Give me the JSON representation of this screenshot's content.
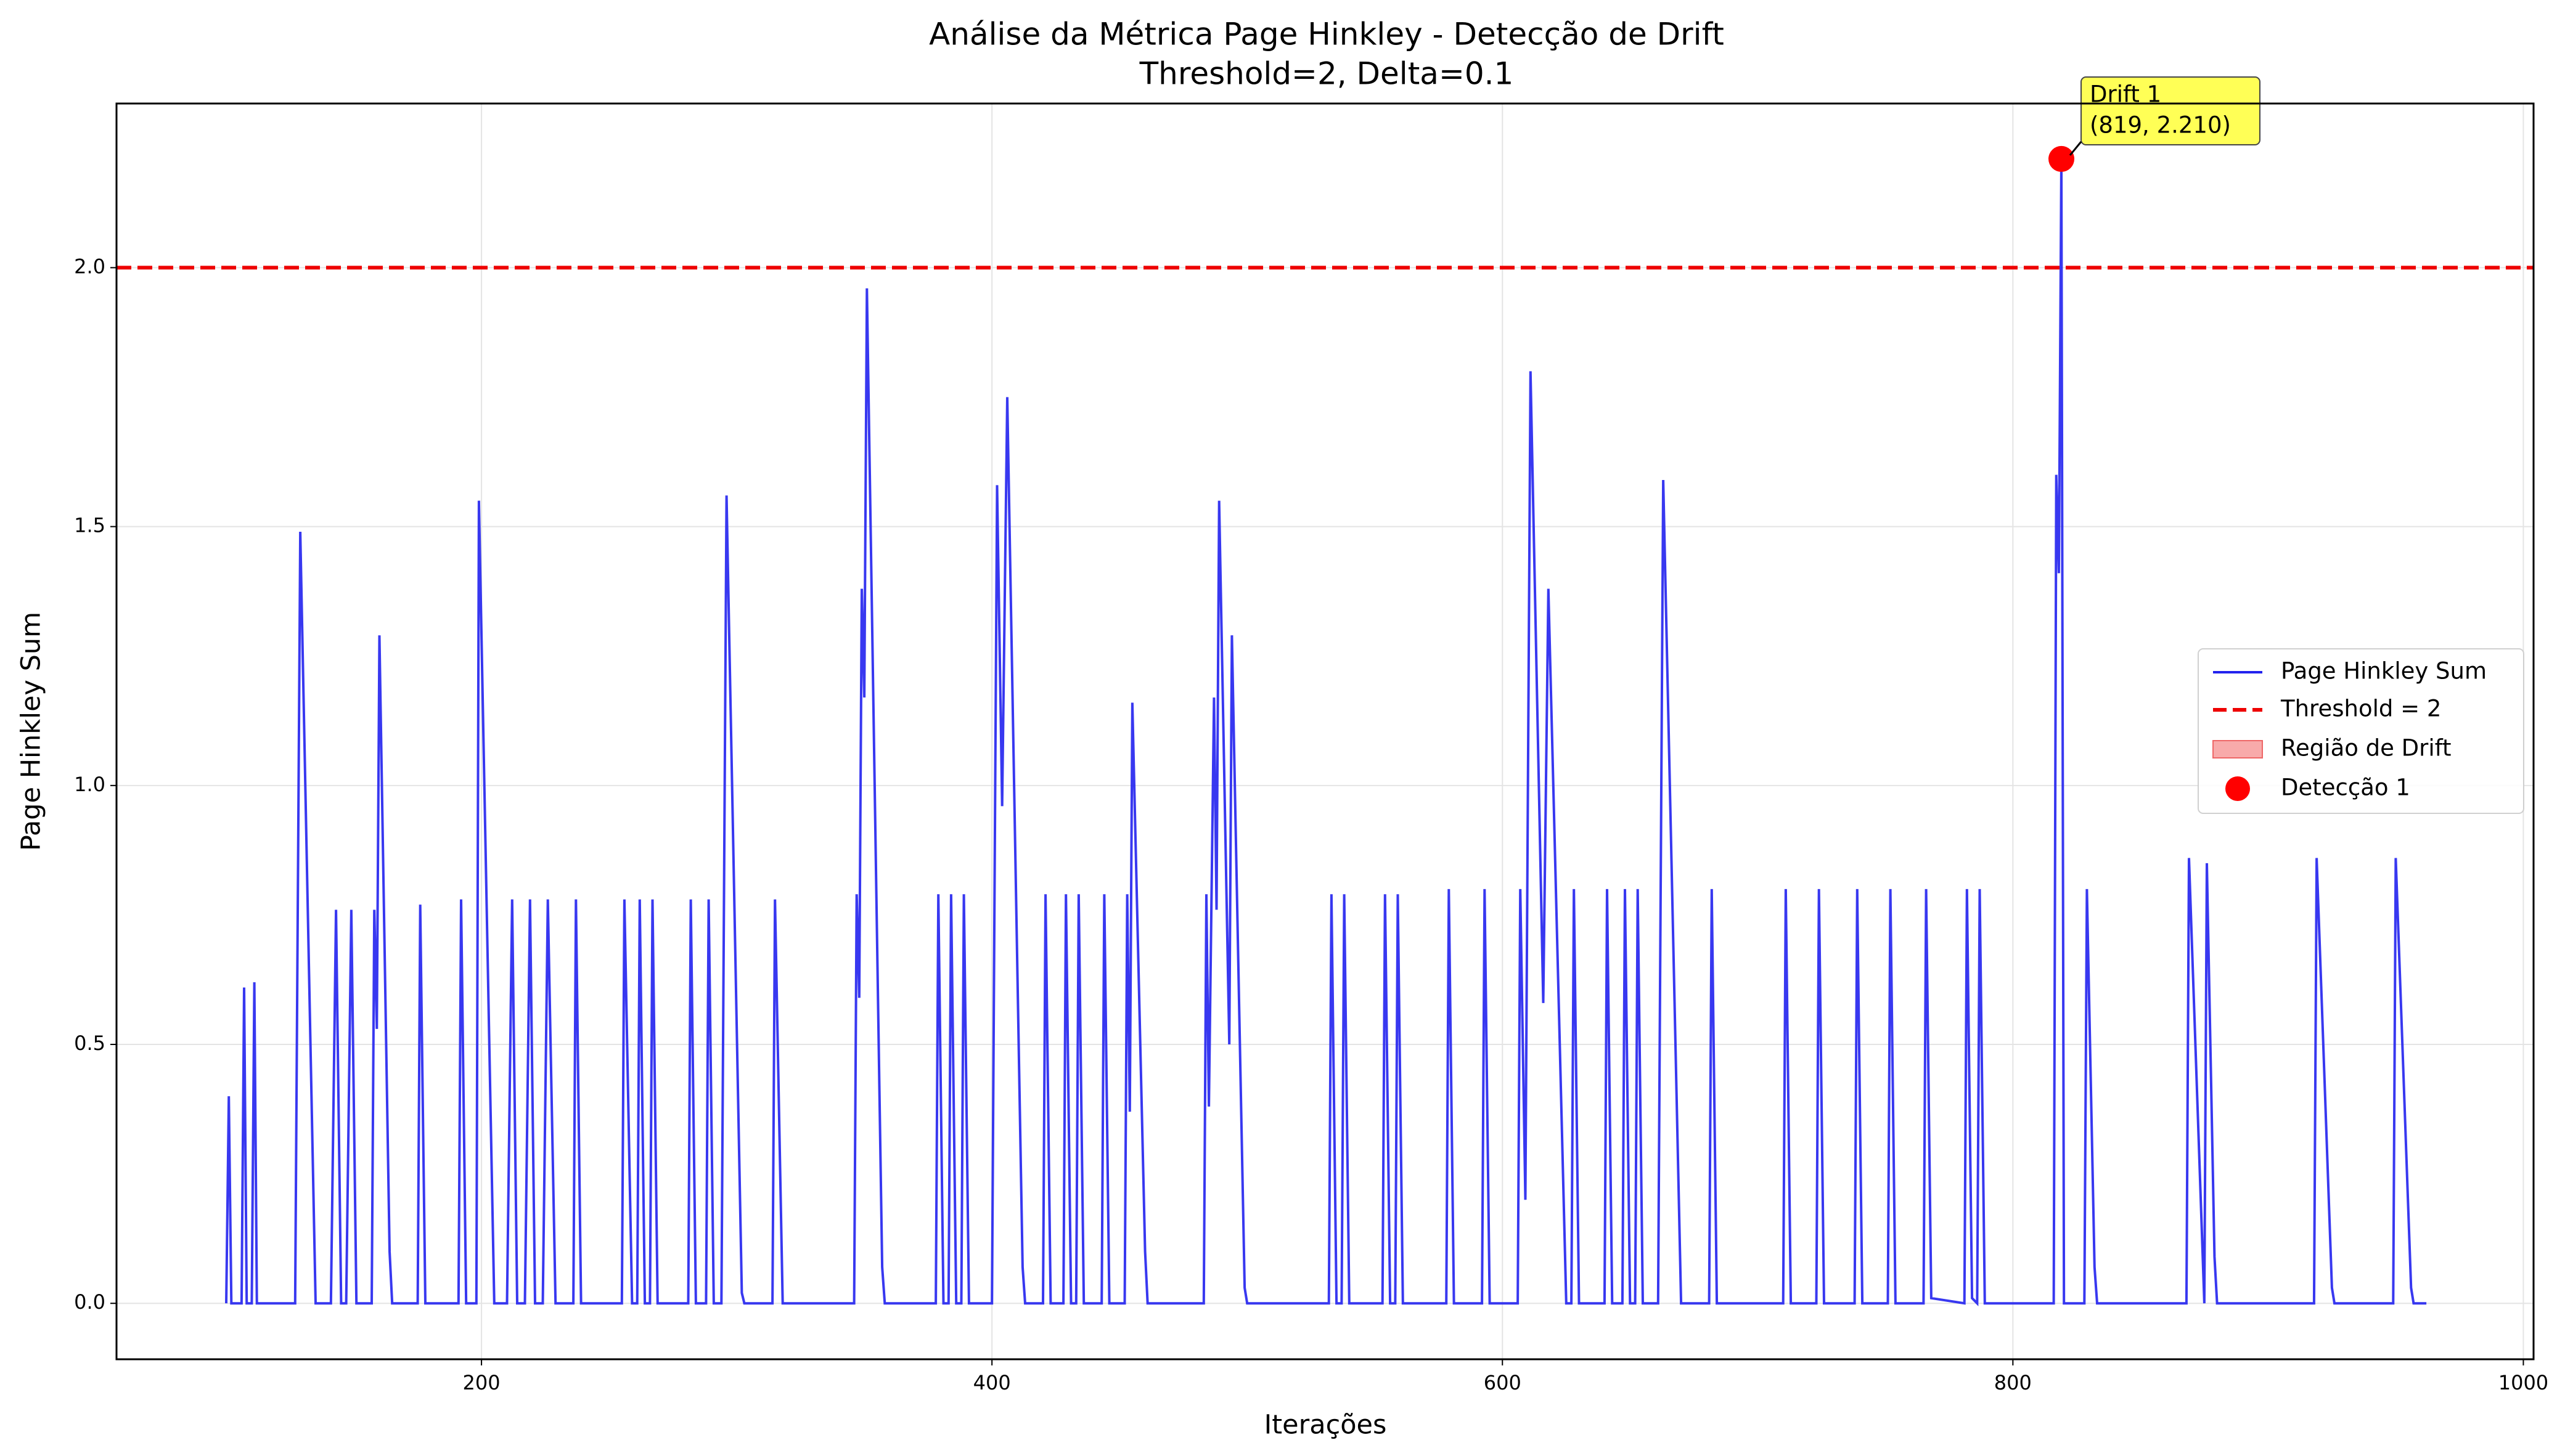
{
  "chart_data": {
    "type": "line",
    "title": "Análise da Métrica Page Hinkley - Detecção de Drift",
    "subtitle": "Threshold=2, Delta=0.1",
    "x_label": "Iterações",
    "y_label": "Page Hinkley Sum",
    "xlim": [
      57,
      1004
    ],
    "ylim": [
      -0.108,
      2.317
    ],
    "xticks": [
      200,
      400,
      600,
      800,
      1000
    ],
    "yticks": [
      {
        "value": 0,
        "label": "0.0"
      },
      0.5,
      {
        "value": 1,
        "label": "1.0"
      },
      1.5,
      {
        "value": 2,
        "label": "2.0"
      }
    ],
    "grid": true,
    "legend": "right",
    "series": [
      {
        "name": "Page Hinkley Sum",
        "color": "#2222ee",
        "x": [
          100,
          101,
          102,
          106,
          107,
          108,
          110,
          111,
          112,
          127,
          129,
          135,
          141,
          143,
          145,
          147,
          149,
          151,
          157,
          158,
          159,
          160,
          164,
          165,
          175,
          176,
          178,
          191,
          192,
          194,
          198,
          199,
          205,
          210,
          212,
          214,
          217,
          219,
          221,
          224,
          226,
          229,
          236,
          237,
          239,
          255,
          256,
          259,
          261,
          262,
          264,
          266,
          267,
          269,
          281,
          282,
          284,
          288,
          289,
          291,
          294,
          296,
          302,
          303,
          314,
          315,
          318,
          346,
          347,
          348,
          349,
          350,
          351,
          357,
          358,
          378,
          379,
          381,
          383,
          384,
          386,
          388,
          389,
          391,
          400,
          402,
          404,
          406,
          412,
          413,
          420,
          421,
          423,
          428,
          429,
          431,
          433,
          434,
          436,
          443,
          444,
          446,
          452,
          453,
          454,
          455,
          460,
          461,
          483,
          484,
          485,
          487,
          488,
          489,
          493,
          494,
          499,
          500,
          532,
          533,
          535,
          537,
          538,
          540,
          553,
          554,
          556,
          558,
          559,
          561,
          578,
          579,
          581,
          592,
          593,
          595,
          606,
          607,
          609,
          611,
          616,
          618,
          625,
          627,
          628,
          630,
          640,
          641,
          643,
          647,
          648,
          650,
          652,
          653,
          655,
          661,
          663,
          670,
          681,
          682,
          684,
          710,
          711,
          713,
          723,
          724,
          726,
          738,
          739,
          741,
          751,
          752,
          754,
          765,
          766,
          768,
          781,
          782,
          784,
          786,
          787,
          789,
          816,
          817,
          818,
          819,
          820,
          828,
          829,
          832,
          833,
          868,
          869,
          875,
          876,
          879,
          880,
          918,
          919,
          925,
          926,
          949,
          950,
          956,
          957,
          962
        ],
        "values": [
          0,
          0.4,
          0,
          0,
          0.61,
          0,
          0,
          0.62,
          0,
          0,
          1.49,
          0,
          0,
          0.76,
          0,
          0,
          0.76,
          0,
          0,
          0.76,
          0.53,
          1.29,
          0.1,
          0,
          0,
          0.77,
          0,
          0,
          0.78,
          0,
          0,
          1.55,
          0,
          0,
          0.78,
          0,
          0,
          0.78,
          0,
          0,
          0.78,
          0,
          0,
          0.78,
          0,
          0,
          0.78,
          0,
          0,
          0.78,
          0,
          0,
          0.78,
          0,
          0,
          0.78,
          0,
          0,
          0.78,
          0,
          0,
          1.56,
          0.02,
          0,
          0,
          0.78,
          0,
          0,
          0.79,
          0.59,
          1.38,
          1.17,
          1.96,
          0.07,
          0,
          0,
          0.79,
          0,
          0,
          0.79,
          0,
          0,
          0.79,
          0,
          0,
          1.58,
          0.96,
          1.75,
          0.07,
          0,
          0,
          0.79,
          0,
          0,
          0.79,
          0,
          0,
          0.79,
          0,
          0,
          0.79,
          0,
          0,
          0.79,
          0.37,
          1.16,
          0.1,
          0,
          0,
          0.79,
          0.38,
          1.17,
          0.76,
          1.55,
          0.5,
          1.29,
          0.03,
          0,
          0,
          0.79,
          0,
          0,
          0.79,
          0,
          0,
          0.79,
          0,
          0,
          0.79,
          0,
          0,
          0.8,
          0,
          0,
          0.8,
          0,
          0,
          0.8,
          0.2,
          1.8,
          0.58,
          1.38,
          0,
          0,
          0.8,
          0,
          0,
          0.8,
          0,
          0,
          0.8,
          0,
          0,
          0.8,
          0,
          0,
          1.59,
          0,
          0,
          0.8,
          0,
          0,
          0.8,
          0,
          0,
          0.8,
          0,
          0,
          0.8,
          0,
          0,
          0.8,
          0,
          0,
          0.8,
          0.01,
          0,
          0.8,
          0.01,
          0,
          0.8,
          0,
          0,
          1.6,
          1.41,
          2.21,
          0,
          0,
          0.8,
          0.07,
          0,
          0,
          0.86,
          0,
          0.85,
          0.09,
          0,
          0,
          0.86,
          0.03,
          0,
          0,
          0.86,
          0.03,
          0,
          0
        ]
      },
      {
        "name": "Threshold = 2",
        "color": "#ee0000",
        "value": 2
      },
      {
        "name": "Região de Drift",
        "color": "#f8aaaa"
      },
      {
        "name": "Detecção 1",
        "color": "#ff0000",
        "x": [
          819
        ],
        "values": [
          2.21
        ]
      }
    ],
    "annotation": {
      "lines": [
        "Drift 1",
        "(819, 2.210)"
      ],
      "color": "#ffff44"
    }
  }
}
